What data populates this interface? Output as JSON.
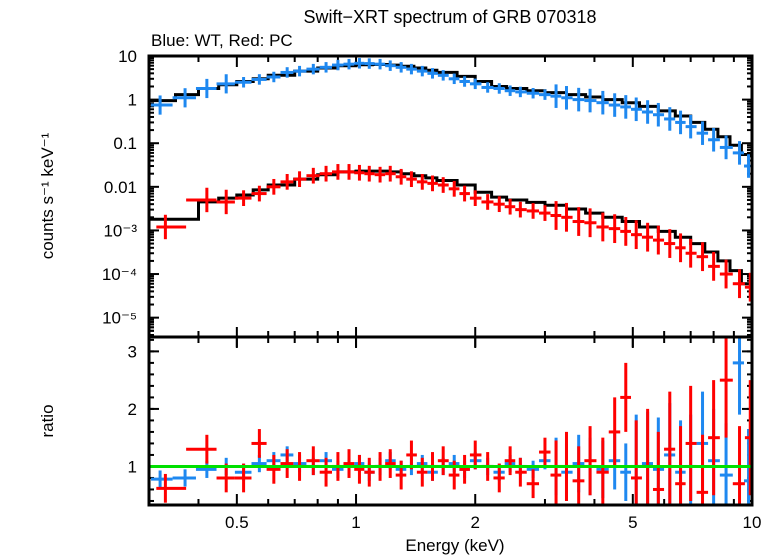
{
  "chart_data": [
    {
      "panel": "spectrum",
      "type": "scatter",
      "title": "Swift−XRT spectrum of GRB 070318",
      "subtitle": "Blue: WT, Red: PC",
      "xlabel": "Energy (keV)",
      "ylabel": "counts s⁻¹ keV⁻¹",
      "xscale": "log",
      "yscale": "log",
      "xlim": [
        0.3,
        10
      ],
      "ylim": [
        3.6e-06,
        10
      ],
      "ytick_labels": [
        "10",
        "1",
        "0.1",
        "0.01",
        "10⁻³",
        "10⁻⁴",
        "10⁻⁵"
      ],
      "ytick_values": [
        10,
        1,
        0.1,
        0.01,
        0.001,
        0.0001,
        1e-05
      ],
      "series": [
        {
          "name": "WT",
          "color": "#1e88f0",
          "x": [
            0.32,
            0.37,
            0.42,
            0.47,
            0.52,
            0.57,
            0.62,
            0.67,
            0.72,
            0.78,
            0.84,
            0.9,
            0.96,
            1.02,
            1.08,
            1.15,
            1.22,
            1.3,
            1.38,
            1.47,
            1.56,
            1.66,
            1.77,
            1.88,
            2.0,
            2.15,
            2.3,
            2.45,
            2.6,
            2.8,
            3.0,
            3.2,
            3.4,
            3.65,
            3.9,
            4.2,
            4.5,
            4.8,
            5.1,
            5.45,
            5.8,
            6.2,
            6.6,
            7.0,
            7.5,
            8.0,
            8.6,
            9.3,
            9.8
          ],
          "y": [
            0.75,
            1.1,
            1.8,
            2.3,
            2.5,
            2.9,
            3.3,
            4.2,
            4.5,
            5.0,
            5.5,
            6.2,
            6.5,
            6.8,
            6.7,
            6.5,
            6.0,
            5.5,
            5.0,
            4.5,
            4.0,
            3.6,
            3.0,
            2.6,
            2.3,
            1.9,
            1.8,
            1.6,
            1.5,
            1.4,
            1.3,
            1.2,
            1.1,
            1.0,
            0.95,
            0.85,
            0.75,
            0.68,
            0.6,
            0.52,
            0.45,
            0.36,
            0.3,
            0.24,
            0.17,
            0.12,
            0.08,
            0.06,
            0.03
          ],
          "ratio": [
            0.78,
            0.8,
            0.95,
            1.0,
            0.9,
            1.05,
            1.1,
            1.2,
            1.05,
            1.0,
            1.1,
            0.95,
            1.0,
            1.05,
            0.9,
            1.0,
            1.1,
            0.95,
            1.0,
            1.05,
            0.9,
            1.0,
            1.05,
            0.95,
            1.1,
            1.0,
            0.9,
            1.05,
            1.0,
            0.95,
            1.1,
            1.0,
            0.9,
            1.05,
            1.0,
            0.95,
            1.1,
            0.9,
            1.0,
            1.05,
            0.95,
            1.2,
            0.9,
            1.0,
            1.4,
            1.1,
            0.85,
            2.8,
            0.75
          ]
        },
        {
          "name": "PC",
          "color": "#ff0000",
          "x": [
            0.33,
            0.42,
            0.47,
            0.52,
            0.57,
            0.62,
            0.67,
            0.72,
            0.78,
            0.84,
            0.9,
            0.96,
            1.02,
            1.08,
            1.15,
            1.22,
            1.3,
            1.38,
            1.47,
            1.56,
            1.66,
            1.77,
            1.88,
            2.0,
            2.15,
            2.3,
            2.45,
            2.6,
            2.8,
            3.0,
            3.2,
            3.4,
            3.65,
            3.9,
            4.2,
            4.5,
            4.8,
            5.1,
            5.45,
            5.8,
            6.2,
            6.6,
            7.0,
            7.5,
            8.0,
            8.6,
            9.3,
            9.9
          ],
          "y": [
            0.0012,
            0.005,
            0.0045,
            0.0055,
            0.007,
            0.01,
            0.013,
            0.015,
            0.018,
            0.02,
            0.022,
            0.022,
            0.021,
            0.02,
            0.019,
            0.02,
            0.017,
            0.015,
            0.013,
            0.012,
            0.011,
            0.009,
            0.007,
            0.0055,
            0.0045,
            0.004,
            0.0035,
            0.003,
            0.0028,
            0.0025,
            0.0022,
            0.002,
            0.0016,
            0.0015,
            0.0012,
            0.0011,
            0.00095,
            0.0008,
            0.0007,
            0.0006,
            0.0005,
            0.0004,
            0.0003,
            0.00025,
            0.00015,
            0.0001,
            6e-05,
            5e-05
          ],
          "ratio": [
            0.62,
            1.3,
            0.8,
            0.8,
            1.4,
            0.95,
            1.05,
            1.0,
            1.1,
            0.9,
            1.0,
            1.05,
            0.95,
            0.9,
            1.0,
            1.05,
            0.85,
            1.2,
            0.9,
            1.0,
            1.1,
            0.85,
            0.95,
            1.2,
            1.0,
            0.8,
            1.1,
            0.9,
            0.7,
            1.25,
            0.85,
            1.0,
            0.75,
            1.1,
            0.9,
            1.6,
            2.2,
            0.8,
            1.0,
            0.6,
            1.3,
            0.7,
            1.4,
            0.55,
            1.5,
            2.5,
            0.7,
            1.5
          ]
        },
        {
          "name": "Model (WT)",
          "color": "#000000",
          "style": "step",
          "x": [
            0.3,
            0.35,
            0.4,
            0.45,
            0.5,
            0.55,
            0.6,
            0.7,
            0.8,
            0.9,
            1.0,
            1.1,
            1.2,
            1.3,
            1.4,
            1.5,
            1.6,
            1.8,
            2.0,
            2.2,
            2.4,
            2.7,
            3.0,
            3.4,
            3.8,
            4.2,
            4.7,
            5.2,
            5.8,
            6.4,
            7.0,
            7.6,
            8.2,
            8.8,
            9.4,
            10.0
          ],
          "y": [
            0.95,
            1.3,
            1.8,
            2.2,
            2.6,
            3.0,
            3.6,
            4.5,
            5.3,
            6.0,
            6.3,
            6.4,
            6.2,
            5.8,
            5.3,
            4.7,
            4.2,
            3.4,
            2.6,
            2.0,
            1.8,
            1.6,
            1.45,
            1.3,
            1.15,
            1.0,
            0.85,
            0.7,
            0.55,
            0.42,
            0.3,
            0.21,
            0.14,
            0.09,
            0.055,
            0.03
          ]
        },
        {
          "name": "Model (PC)",
          "color": "#000000",
          "style": "step",
          "x": [
            0.3,
            0.4,
            0.45,
            0.5,
            0.55,
            0.6,
            0.7,
            0.8,
            0.9,
            1.0,
            1.1,
            1.2,
            1.3,
            1.4,
            1.5,
            1.6,
            1.8,
            2.0,
            2.2,
            2.4,
            2.7,
            3.0,
            3.4,
            3.8,
            4.2,
            4.7,
            5.2,
            5.8,
            6.4,
            7.0,
            7.6,
            8.2,
            8.8,
            9.4,
            10.0
          ],
          "y": [
            0.0018,
            0.0045,
            0.0055,
            0.0065,
            0.0085,
            0.011,
            0.015,
            0.019,
            0.022,
            0.023,
            0.023,
            0.022,
            0.02,
            0.018,
            0.016,
            0.014,
            0.011,
            0.0075,
            0.0058,
            0.005,
            0.0044,
            0.0038,
            0.0031,
            0.0025,
            0.002,
            0.0016,
            0.0012,
            0.00095,
            0.0007,
            0.0005,
            0.00032,
            0.0002,
            0.00012,
            6e-05,
            3e-05
          ]
        }
      ]
    },
    {
      "panel": "ratio",
      "type": "scatter",
      "xlabel": "Energy (keV)",
      "ylabel": "ratio",
      "xscale": "log",
      "xlim": [
        0.3,
        10
      ],
      "ylim": [
        0.33,
        3.25
      ],
      "xtick_labels": [
        "0.5",
        "1",
        "2",
        "5",
        "10"
      ],
      "xtick_values": [
        0.5,
        1,
        2,
        5,
        10
      ],
      "ytick_labels": [
        "1",
        "2",
        "3"
      ],
      "ytick_values": [
        1,
        2,
        3
      ],
      "reference_line": {
        "y": 1,
        "color": "#00e000"
      }
    }
  ]
}
